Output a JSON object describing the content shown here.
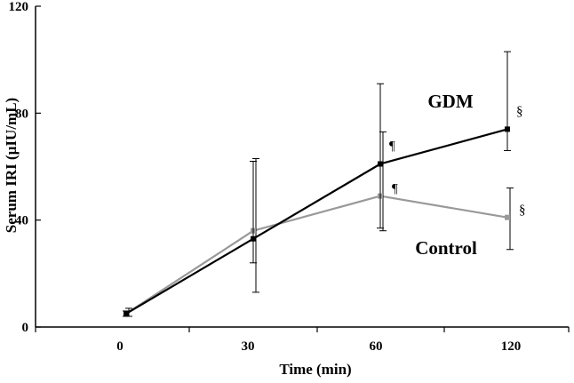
{
  "chart_data": {
    "type": "line",
    "xlabel": "Time (min)",
    "ylabel": "Serum IRI (µIU/mL)",
    "categories": [
      "0",
      "30",
      "60",
      "120"
    ],
    "ylim": [
      0,
      120
    ],
    "yticks": [
      "0",
      "40",
      "80",
      "120"
    ],
    "grid": false,
    "legend": "none",
    "series": [
      {
        "name": "GDM",
        "color": "#000000",
        "values": [
          5,
          33,
          61,
          74
        ],
        "err_low": [
          4,
          24,
          37,
          66
        ],
        "err_high": [
          6,
          62,
          91,
          103
        ],
        "annotations": [
          "",
          "",
          "¶",
          "§"
        ]
      },
      {
        "name": "Control",
        "color": "#999999",
        "values": [
          5,
          36,
          49,
          41
        ],
        "err_low": [
          4,
          13,
          36,
          29
        ],
        "err_high": [
          7,
          63,
          73,
          52
        ],
        "annotations": [
          "",
          "",
          "¶",
          "§"
        ]
      }
    ]
  }
}
